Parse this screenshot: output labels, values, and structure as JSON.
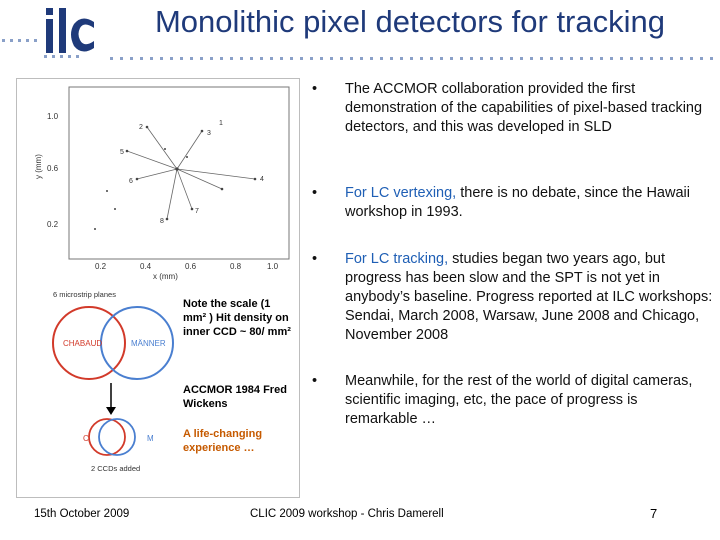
{
  "slide": {
    "title": "Monolithic pixel detectors for tracking",
    "logo_text": "ilc",
    "colors": {
      "title": "#1f3a7a",
      "logo": "#1f3a7a",
      "highlight": "#1f5fb5",
      "orange": "#c65a00",
      "dots": "#8aa0c8"
    }
  },
  "figure": {
    "y_axis_label": "y (mm)",
    "x_axis_label": "x (mm)",
    "y_ticks": [
      "1.0",
      "0.6",
      "0.2"
    ],
    "x_ticks": [
      "0.2",
      "0.4",
      "0.6",
      "0.8",
      "1.0"
    ],
    "point_labels": [
      "1",
      "2",
      "3",
      "4",
      "5",
      "6",
      "7",
      "8"
    ],
    "venn_top_title": "6 microstrip planes",
    "venn_left": "CHABAUD",
    "venn_right": "MÄNNER",
    "venn_bottom_left": "C",
    "venn_bottom_right": "M",
    "venn_bottom_caption": "2 CCDs added",
    "note_scale": "Note the scale   (1 mm² ) Hit density on inner CCD ~ 80/ mm²",
    "note_accmor": "ACCMOR 1984 Fred Wickens",
    "note_life": "A life-changing experience …"
  },
  "bullets": [
    {
      "marker": "•",
      "text": "The ACCMOR collaboration provided the first demonstration of the capabilities of pixel-based tracking detectors, and this was developed in SLD"
    },
    {
      "marker": "•",
      "highlight": "For LC vertexing,",
      "text": " there is no debate, since the Hawaii workshop in 1993."
    },
    {
      "marker": "•",
      "highlight": "For LC tracking,",
      "text": " studies began two years ago, but  progress has been slow and the SPT is not yet in anybody’s baseline.  Progress reported at ILC workshops:  Sendai, March 2008, Warsaw, June 2008 and Chicago, November 2008"
    },
    {
      "marker": "•",
      "text": "Meanwhile, for the rest of the world of digital cameras, scientific imaging, etc, the pace of progress is remarkable …"
    }
  ],
  "footer": {
    "date": "15th October 2009",
    "event": "CLIC 2009 workshop - Chris Damerell",
    "page": "7"
  }
}
